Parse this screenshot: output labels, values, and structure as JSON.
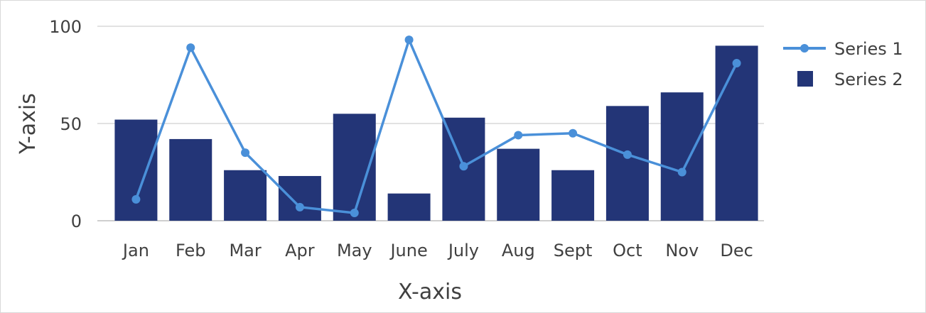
{
  "chart_data": {
    "type": "bar",
    "categories": [
      "Jan",
      "Feb",
      "Mar",
      "Apr",
      "May",
      "June",
      "July",
      "Aug",
      "Sept",
      "Oct",
      "Nov",
      "Dec"
    ],
    "series": [
      {
        "name": "Series 1",
        "type": "line",
        "color": "#4a90d9",
        "values": [
          11,
          89,
          35,
          7,
          4,
          93,
          28,
          44,
          45,
          34,
          25,
          81
        ]
      },
      {
        "name": "Series 2",
        "type": "bar",
        "color": "#233577",
        "values": [
          52,
          42,
          26,
          23,
          55,
          14,
          53,
          37,
          26,
          59,
          66,
          90
        ]
      }
    ],
    "xlabel": "X-axis",
    "ylabel": "Y-axis",
    "ylim": [
      0,
      100
    ],
    "yticks": [
      0,
      50,
      100
    ],
    "grid": true,
    "legend_position": "top-right"
  }
}
